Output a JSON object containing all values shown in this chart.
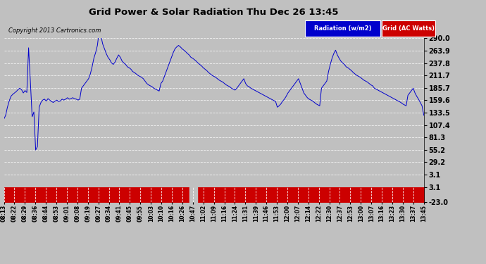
{
  "title": "Grid Power & Solar Radiation Thu Dec 26 13:45",
  "copyright": "Copyright 2013 Cartronics.com",
  "background_color": "#c0c0c0",
  "plot_bg_color": "#c0c0c0",
  "ylim_main": [
    -23.0,
    290.0
  ],
  "yticks_main": [
    290.0,
    263.9,
    237.8,
    211.7,
    185.7,
    159.6,
    133.5,
    107.4,
    81.3,
    55.2,
    29.2,
    3.1
  ],
  "ylim_red": [
    -23.0,
    3.1
  ],
  "yticks_red": [
    3.1,
    -23.0
  ],
  "legend_radiation_label": "Radiation (w/m2)",
  "legend_radiation_bg": "#0000cc",
  "legend_grid_label": "Grid (AC Watts)",
  "legend_grid_bg": "#cc0000",
  "line_color": "#0000cc",
  "red_bar_color": "#cc0000",
  "xtick_labels": [
    "08:13",
    "08:22",
    "08:29",
    "08:36",
    "08:44",
    "08:53",
    "09:01",
    "09:08",
    "09:19",
    "09:27",
    "09:34",
    "09:41",
    "09:45",
    "09:55",
    "10:03",
    "10:10",
    "10:16",
    "10:26",
    "10:47",
    "11:02",
    "11:09",
    "11:16",
    "11:24",
    "11:31",
    "11:39",
    "11:46",
    "11:53",
    "12:00",
    "12:07",
    "12:14",
    "12:22",
    "12:30",
    "12:37",
    "12:53",
    "13:00",
    "13:07",
    "13:16",
    "13:23",
    "13:30",
    "13:37",
    "13:45"
  ],
  "radiation_data_y": [
    120,
    128,
    145,
    158,
    168,
    172,
    175,
    178,
    182,
    185,
    182,
    175,
    180,
    176,
    270,
    200,
    125,
    135,
    55,
    62,
    145,
    155,
    160,
    162,
    158,
    163,
    160,
    157,
    155,
    158,
    160,
    157,
    158,
    162,
    160,
    162,
    165,
    162,
    163,
    165,
    163,
    162,
    160,
    162,
    185,
    190,
    195,
    200,
    205,
    215,
    230,
    248,
    260,
    275,
    305,
    295,
    278,
    268,
    258,
    250,
    245,
    238,
    235,
    240,
    248,
    255,
    250,
    242,
    238,
    235,
    230,
    228,
    225,
    220,
    218,
    215,
    212,
    210,
    208,
    205,
    200,
    195,
    192,
    190,
    188,
    185,
    183,
    181,
    179,
    195,
    200,
    210,
    220,
    230,
    240,
    250,
    260,
    268,
    272,
    275,
    272,
    268,
    265,
    262,
    258,
    255,
    250,
    248,
    245,
    242,
    238,
    235,
    232,
    228,
    225,
    222,
    218,
    215,
    212,
    210,
    208,
    205,
    202,
    200,
    198,
    195,
    192,
    190,
    188,
    185,
    183,
    181,
    185,
    190,
    195,
    200,
    205,
    195,
    190,
    188,
    185,
    183,
    181,
    179,
    177,
    175,
    173,
    171,
    169,
    167,
    165,
    163,
    161,
    159,
    157,
    145,
    148,
    152,
    158,
    162,
    168,
    175,
    180,
    185,
    190,
    195,
    200,
    205,
    195,
    185,
    175,
    170,
    165,
    162,
    160,
    158,
    155,
    152,
    150,
    148,
    185,
    190,
    195,
    200,
    220,
    235,
    248,
    258,
    265,
    255,
    248,
    242,
    238,
    235,
    230,
    228,
    225,
    222,
    218,
    215,
    212,
    210,
    208,
    205,
    202,
    200,
    198,
    195,
    192,
    190,
    185,
    183,
    181,
    179,
    177,
    175,
    173,
    171,
    169,
    167,
    165,
    163,
    161,
    159,
    157,
    155,
    152,
    150,
    148,
    170,
    175,
    180,
    185,
    175,
    168,
    162,
    155,
    148,
    128
  ]
}
